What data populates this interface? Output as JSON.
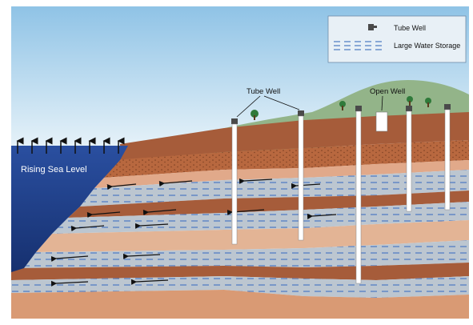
{
  "labels": {
    "tube_well": "Tube Well",
    "open_well": "Open Well",
    "rising_sea_level": "Rising Sea Level"
  },
  "legend": {
    "tube_well": "Tube Well",
    "large_water_storage": "Large Water Storage"
  },
  "colors": {
    "sky_top": "#8fc3e6",
    "sky_bottom": "#e2f0f8",
    "sea": "#1f3f8f",
    "hill": "#93b489",
    "soil_dark": "#a65c3a",
    "soil_light": "#d99a74",
    "clay_grey": "#b8c0c8",
    "water_dash": "#4a78c2",
    "well_pipe": "#ffffff"
  }
}
